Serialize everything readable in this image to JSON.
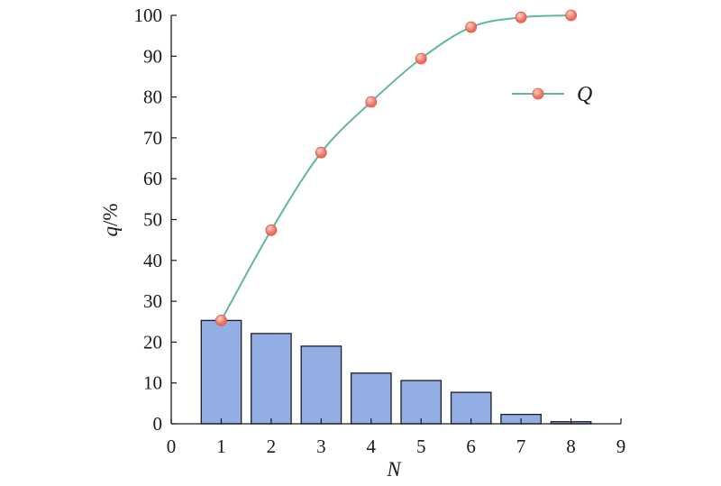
{
  "chart_data": {
    "type": "bar",
    "x": [
      1,
      2,
      3,
      4,
      5,
      6,
      7,
      8
    ],
    "bar_values": [
      25.3,
      22.1,
      19.0,
      12.4,
      10.6,
      7.7,
      2.3,
      0.5
    ],
    "line_series": {
      "name": "Q",
      "values": [
        25.3,
        47.4,
        66.4,
        78.8,
        89.4,
        97.1,
        99.5,
        100.0
      ]
    },
    "xlabel": "N",
    "ylabel_var": "q",
    "ylabel_unit": "/%",
    "xlim": [
      0,
      9
    ],
    "ylim": [
      0,
      100
    ],
    "xticks": [
      "0",
      "1",
      "2",
      "3",
      "4",
      "5",
      "6",
      "7",
      "8",
      "9"
    ],
    "yticks": [
      "0",
      "10",
      "20",
      "30",
      "40",
      "50",
      "60",
      "70",
      "80",
      "90",
      "100"
    ],
    "grid": false,
    "legend_position": "top-right",
    "colors": {
      "bar_fill": "#92aee3",
      "bar_stroke": "#1c1c2e",
      "line": "#5fb89e",
      "marker": "#ee6d5c",
      "marker_highlight": "#fbd2c8",
      "axis": "#1a1a1a"
    }
  }
}
